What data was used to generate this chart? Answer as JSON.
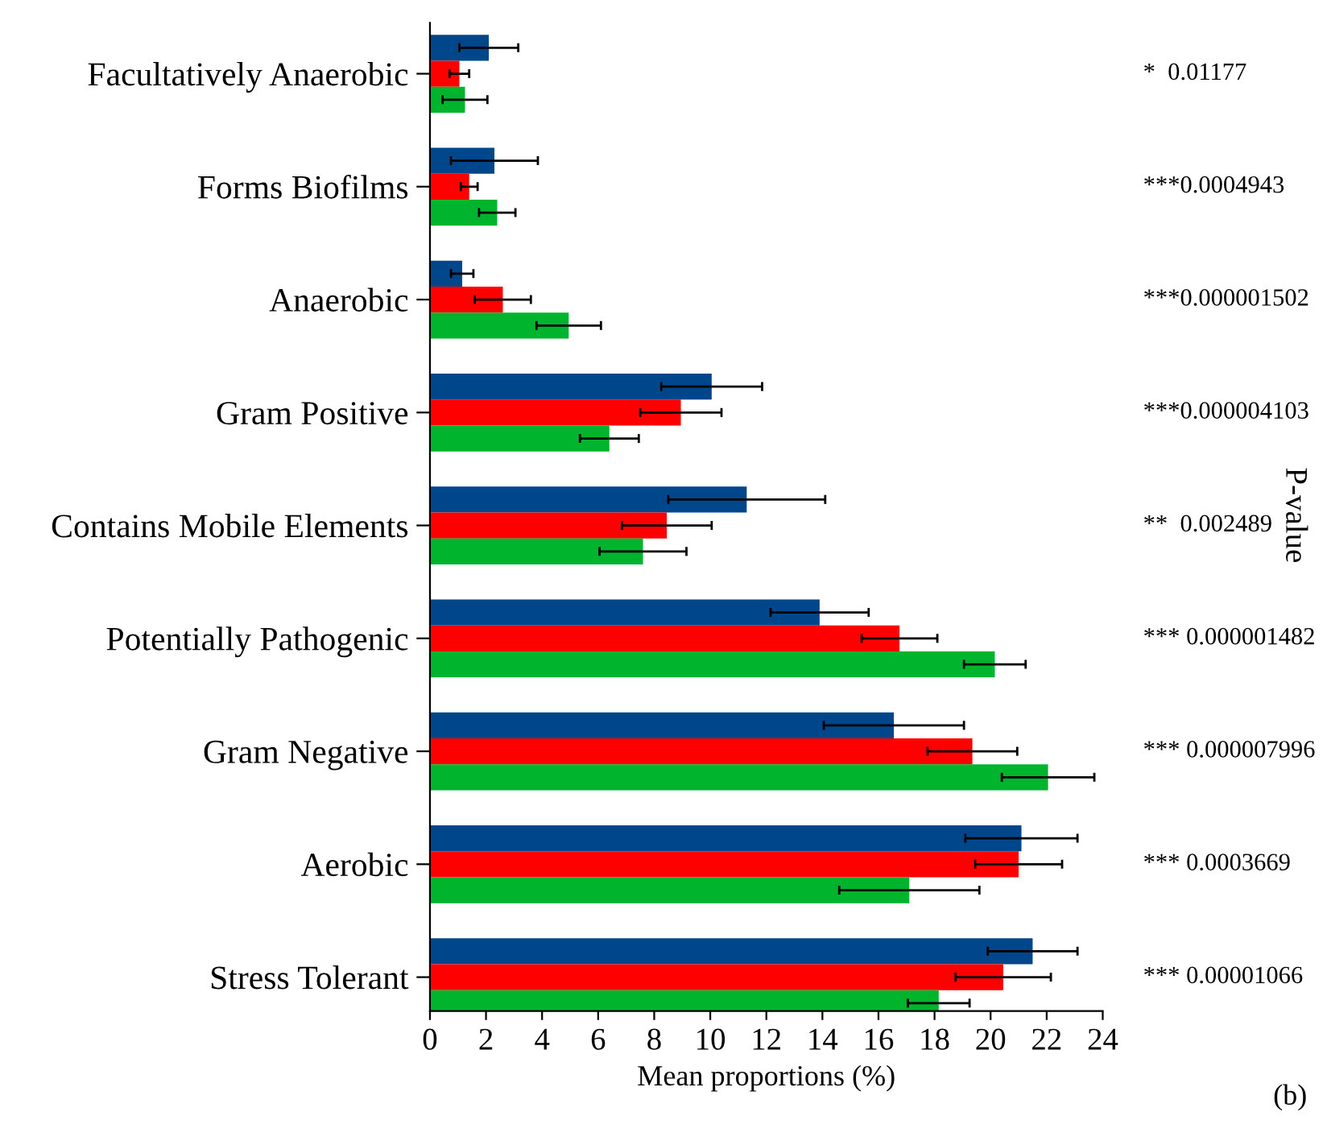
{
  "chart_data": {
    "type": "bar",
    "orientation": "horizontal",
    "categories": [
      "Facultatively Anaerobic",
      "Forms Biofilms",
      "Anaerobic",
      "Gram Positive",
      "Contains Mobile Elements",
      "Potentially Pathogenic",
      "Gram Negative",
      "Aerobic",
      "Stress Tolerant"
    ],
    "series": [
      {
        "color": "#00468b",
        "values": [
          2.1,
          2.3,
          1.15,
          10.05,
          11.3,
          13.9,
          16.55,
          21.1,
          21.5
        ],
        "errors": [
          1.05,
          1.55,
          0.4,
          1.8,
          2.8,
          1.75,
          2.5,
          2.0,
          1.6
        ]
      },
      {
        "color": "#ff0000",
        "values": [
          1.05,
          1.4,
          2.6,
          8.95,
          8.45,
          16.75,
          19.35,
          21.0,
          20.45
        ],
        "errors": [
          0.35,
          0.3,
          1.0,
          1.45,
          1.6,
          1.35,
          1.6,
          1.55,
          1.7
        ]
      },
      {
        "color": "#00b52d",
        "values": [
          1.25,
          2.4,
          4.95,
          6.4,
          7.6,
          20.15,
          22.05,
          17.1,
          18.15
        ],
        "errors": [
          0.8,
          0.65,
          1.15,
          1.05,
          1.55,
          1.1,
          1.65,
          2.5,
          1.1
        ]
      }
    ],
    "xlim": [
      0,
      24
    ],
    "xticks": [
      0,
      2,
      4,
      6,
      8,
      10,
      12,
      14,
      16,
      18,
      20,
      22,
      24
    ],
    "xlabel": "Mean proportions (%)",
    "annotations": [
      "*  0.01177",
      "***0.0004943",
      "***0.000001502",
      "***0.000004103",
      "**  0.002489",
      "*** 0.000001482",
      "*** 0.000007996",
      "*** 0.0003669",
      "*** 0.00001066",
      "P-value",
      "(b)"
    ],
    "grid": false,
    "legend": false
  }
}
